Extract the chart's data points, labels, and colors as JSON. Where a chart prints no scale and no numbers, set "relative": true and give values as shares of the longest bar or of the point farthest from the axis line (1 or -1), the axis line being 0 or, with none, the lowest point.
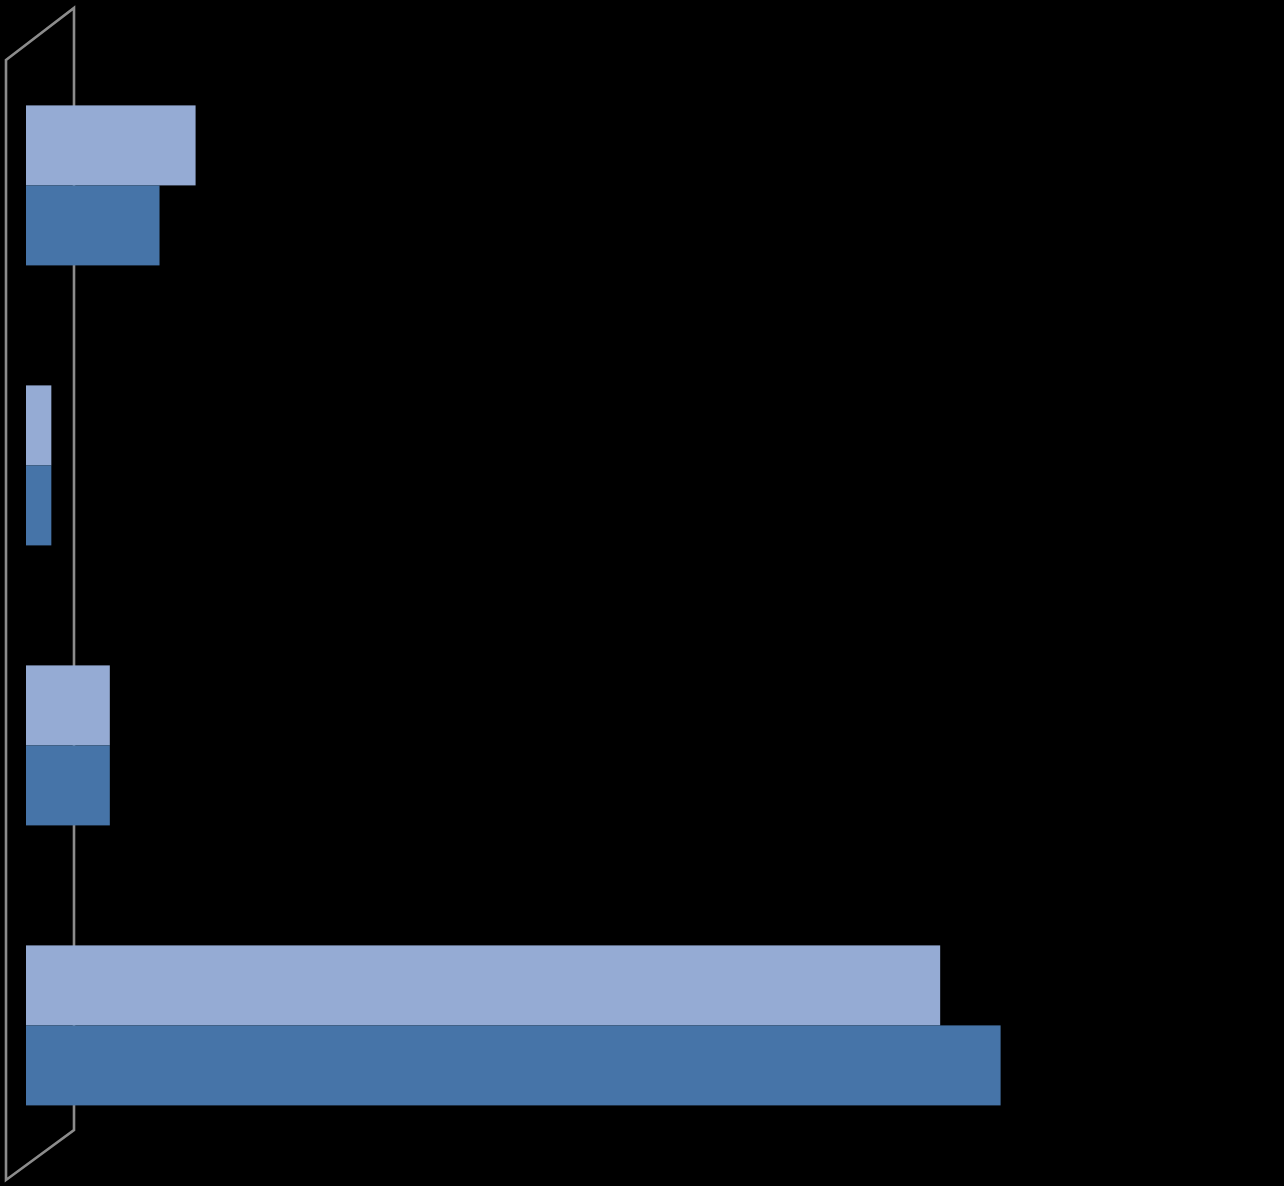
{
  "chart_data": {
    "type": "bar",
    "orientation": "horizontal",
    "relative": true,
    "categories": [
      null,
      null,
      null,
      null
    ],
    "series": [
      {
        "color": "#95abd4",
        "values": [
          0.174,
          0.026,
          0.086,
          0.938
        ]
      },
      {
        "color": "#4674a8",
        "values": [
          0.137,
          0.026,
          0.086,
          1
        ]
      }
    ]
  }
}
